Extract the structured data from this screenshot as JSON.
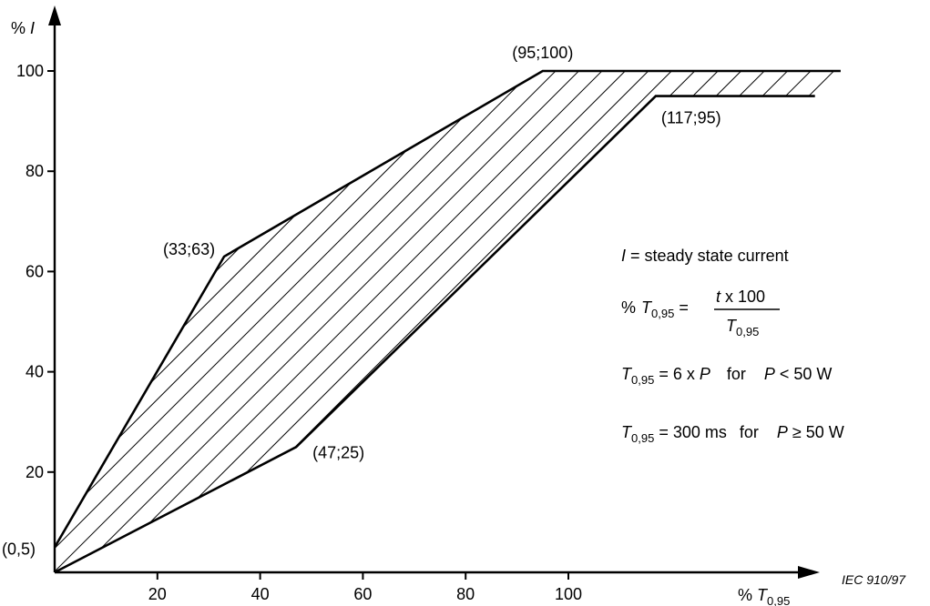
{
  "chart_data": {
    "type": "area",
    "title": "",
    "xlabel": "% T0,95",
    "ylabel": "% I",
    "xlim": [
      0,
      153
    ],
    "ylim": [
      0,
      112
    ],
    "x_ticks": [
      20,
      40,
      60,
      80,
      100
    ],
    "y_ticks": [
      20,
      40,
      60,
      80,
      100
    ],
    "grid": false,
    "series": [
      {
        "role": "upper-limit",
        "points": [
          [
            0,
            5
          ],
          [
            33,
            63
          ],
          [
            95,
            100
          ],
          [
            153,
            100
          ]
        ]
      },
      {
        "role": "lower-limit",
        "points": [
          [
            0,
            0
          ],
          [
            47,
            25
          ],
          [
            117,
            95
          ],
          [
            148,
            95
          ]
        ]
      }
    ],
    "fill": "hatched",
    "annotations": [
      {
        "text": "(0,5)",
        "x": 0,
        "y": 5
      },
      {
        "text": "(33;63)",
        "x": 33,
        "y": 63
      },
      {
        "text": "(95;100)",
        "x": 95,
        "y": 100
      },
      {
        "text": "(47;25)",
        "x": 47,
        "y": 25
      },
      {
        "text": "(117;95)",
        "x": 117,
        "y": 95
      }
    ]
  },
  "labels": {
    "y_axis_percent": "%",
    "y_axis_symbol": "I",
    "x_axis_percent": "%",
    "x_axis_symbol": "T",
    "x_axis_sub": "0,95"
  },
  "legend": {
    "line1": {
      "symbol": "I",
      "text": " = steady state current"
    },
    "line2": {
      "prefix": "%",
      "symbol": "T",
      "sub": "0,95",
      "eq": " =",
      "num_t": "t",
      "num_rest": " x 100",
      "den_symbol": "T",
      "den_sub": "0,95"
    },
    "line3": {
      "symbol": "T",
      "sub": "0,95",
      "eq": " = 6 x ",
      "p": "P",
      "cond": "for",
      "p2": "P",
      "rest": " < 50 W"
    },
    "line4": {
      "symbol": "T",
      "sub": "0,95",
      "eq": " = 300 ms",
      "cond": "for",
      "p2": "P",
      "rest": " ≥ 50 W"
    }
  },
  "source_label": "IEC  910/97"
}
